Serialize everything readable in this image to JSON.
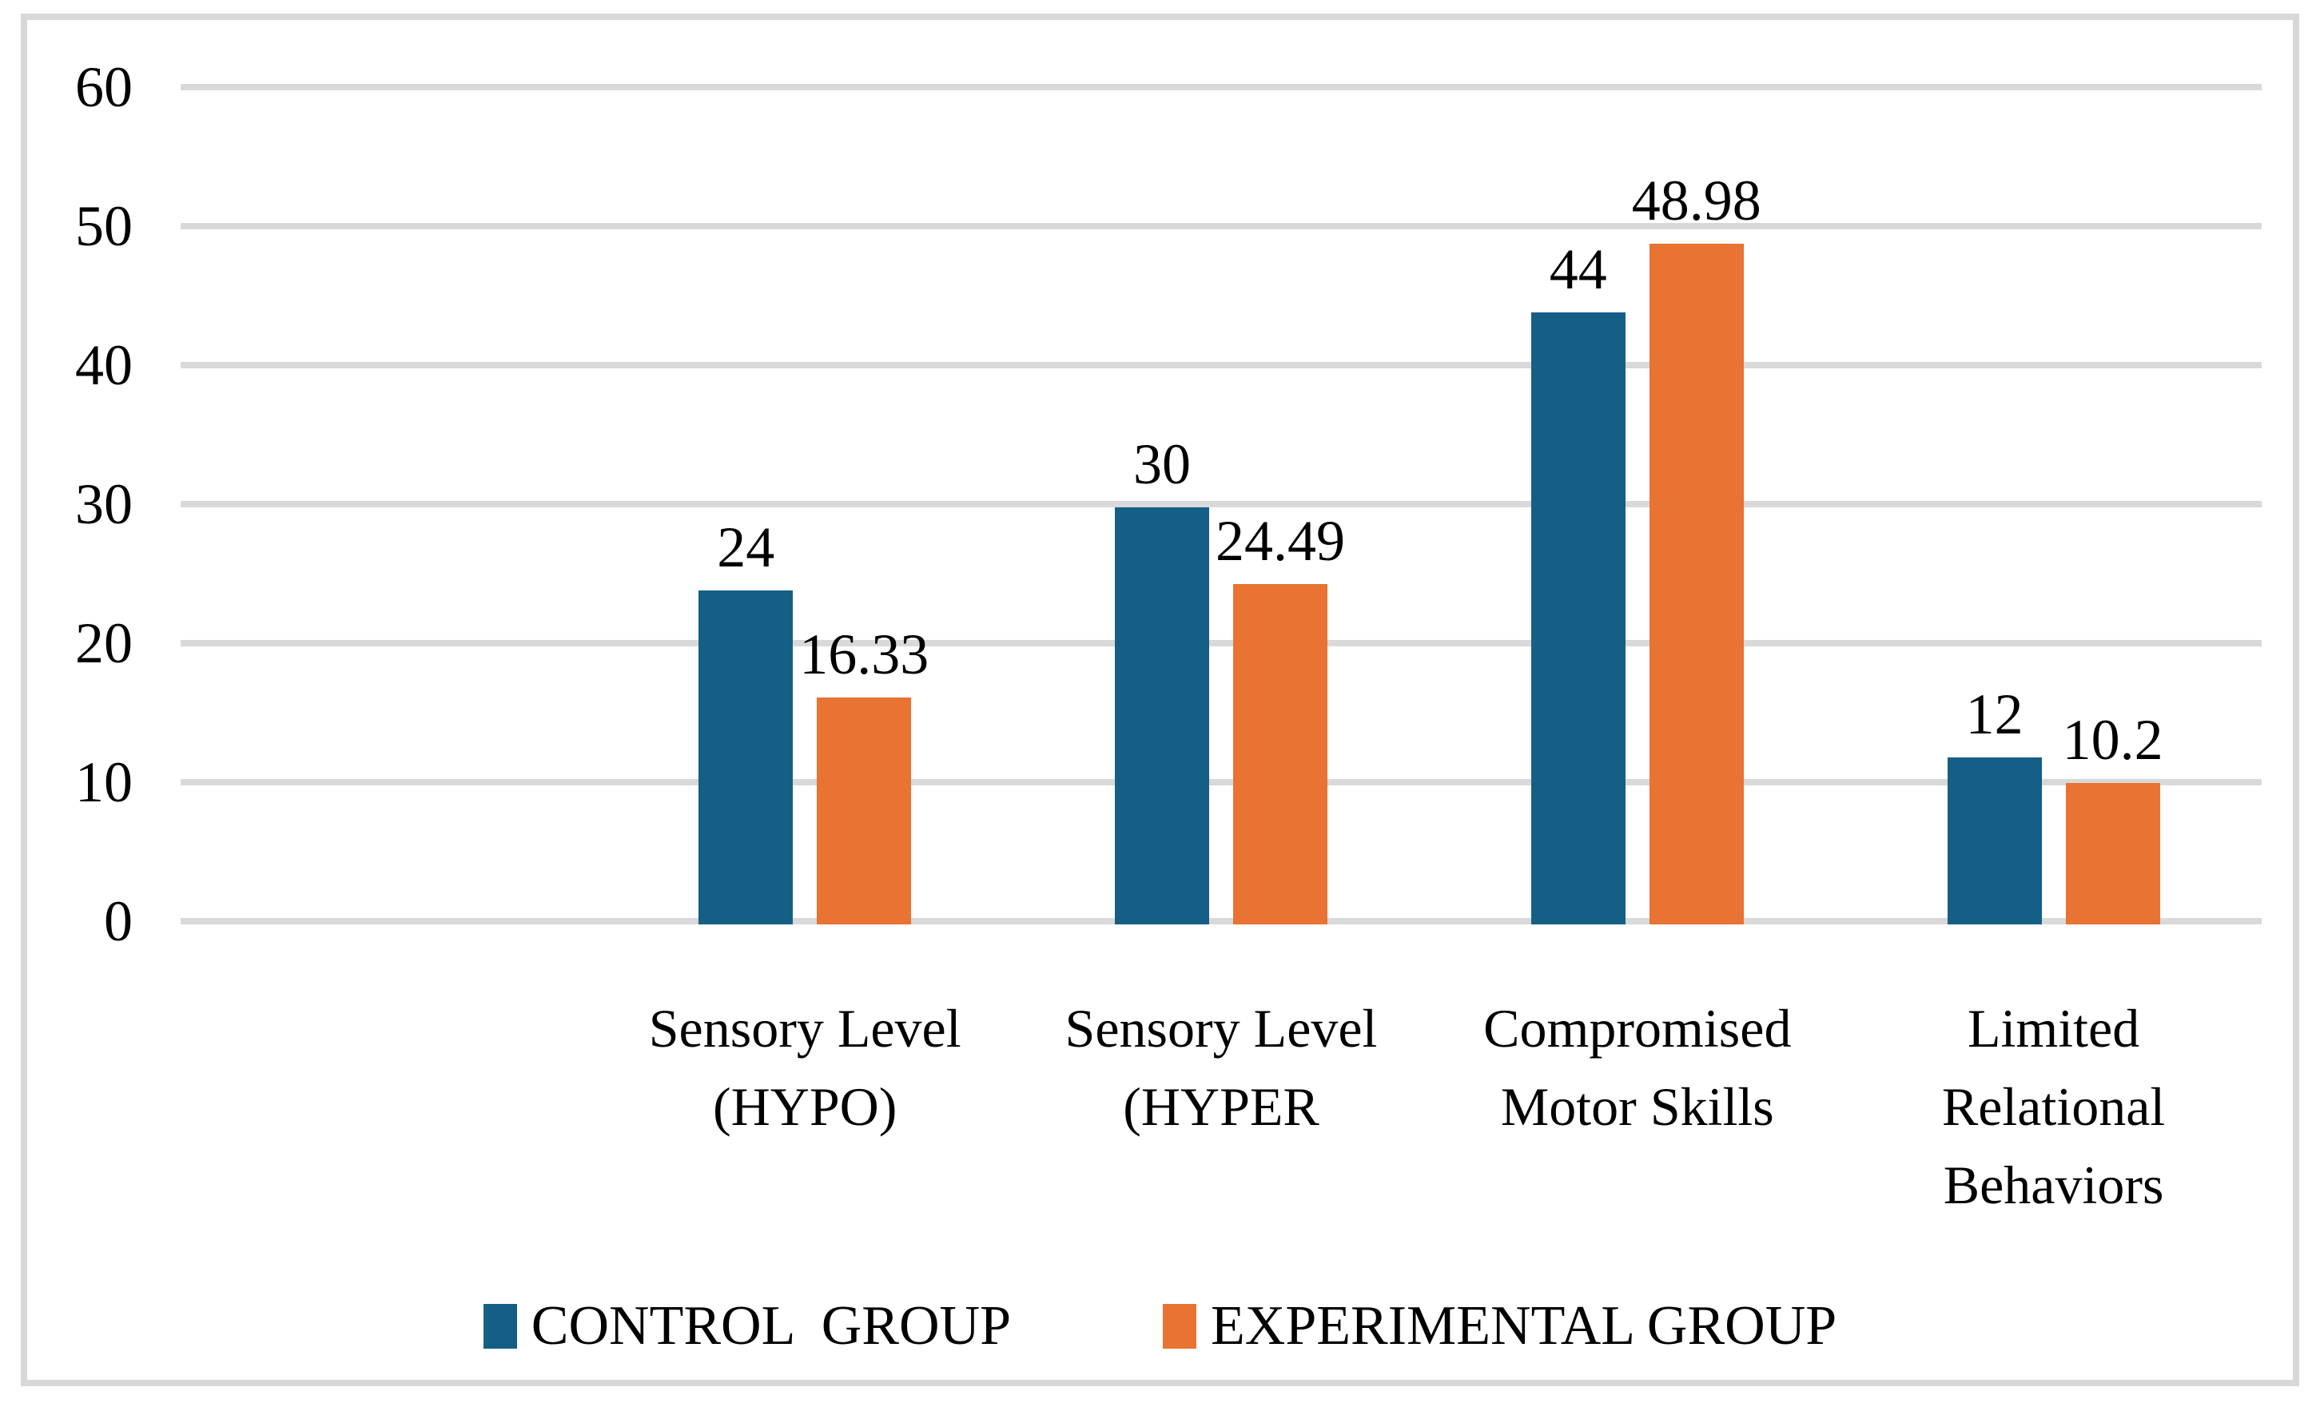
{
  "chart_data": {
    "type": "bar",
    "title": "",
    "xlabel": "",
    "ylabel": "",
    "categories": [
      "Sensory Level\n(HYPO)",
      "Sensory Level\n(HYPER",
      "Compromised\nMotor Skills",
      "Limited\nRelational\nBehaviors"
    ],
    "series": [
      {
        "name": "CONTROL  GROUP",
        "color": "#155F87",
        "values": [
          24,
          30,
          44,
          12
        ],
        "labels": [
          "24",
          "30",
          "44",
          "12"
        ]
      },
      {
        "name": "EXPERIMENTAL GROUP",
        "color": "#E87332",
        "values": [
          16.33,
          24.49,
          48.98,
          10.2
        ],
        "labels": [
          "16.33",
          "24.49",
          "48.98",
          "10.2"
        ]
      }
    ],
    "yticks": [
      0,
      10,
      20,
      30,
      40,
      50,
      60
    ],
    "ylim": [
      0,
      60
    ],
    "grid": true,
    "gridline_color": "#d9d9d9",
    "frame_border_color": "#d8d8d8",
    "legend_position": "bottom"
  }
}
